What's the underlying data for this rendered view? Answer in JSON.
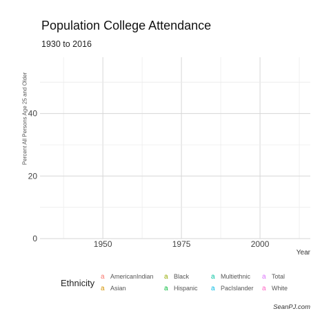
{
  "chart_data": {
    "type": "line",
    "title": "Population College Attendance",
    "subtitle": "1930 to 2016",
    "xlabel": "Year",
    "ylabel": "Percent All Persons Age 25 and Older",
    "credit": "SeanPJ.com",
    "x_ticks": [
      1950,
      1975,
      2000
    ],
    "y_ticks": [
      0,
      20,
      40
    ],
    "xlim": [
      1930,
      2016
    ],
    "ylim": [
      0,
      58
    ],
    "grid": true,
    "legend": {
      "title": "Ethnicity",
      "placement": "bottom",
      "entries": [
        {
          "name": "AmericanIndian",
          "color": "#F8766D"
        },
        {
          "name": "Asian",
          "color": "#D39200"
        },
        {
          "name": "Black",
          "color": "#93AA00"
        },
        {
          "name": "Hispanic",
          "color": "#00BA38"
        },
        {
          "name": "Multiethnic",
          "color": "#00C19F"
        },
        {
          "name": "PacIslander",
          "color": "#00B9E3"
        },
        {
          "name": "Total",
          "color": "#DB72FB"
        },
        {
          "name": "White",
          "color": "#FF61C3"
        }
      ]
    },
    "series": [
      {
        "name": "AmericanIndian",
        "values": []
      },
      {
        "name": "Asian",
        "values": []
      },
      {
        "name": "Black",
        "values": []
      },
      {
        "name": "Hispanic",
        "values": []
      },
      {
        "name": "Multiethnic",
        "values": []
      },
      {
        "name": "PacIslander",
        "values": []
      },
      {
        "name": "Total",
        "values": []
      },
      {
        "name": "White",
        "values": []
      }
    ]
  }
}
